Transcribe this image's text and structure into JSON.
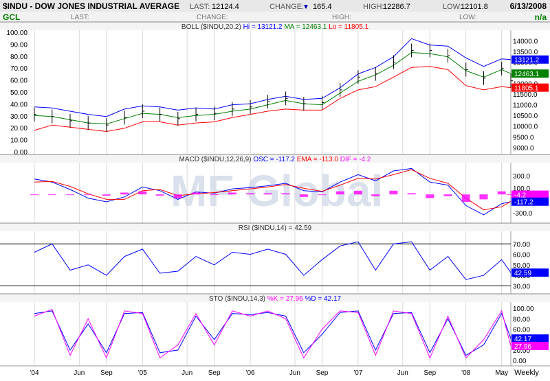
{
  "header": {
    "symbol_title": "$INDU - DOW JONES INDUSTRIAL AVERAGE",
    "last_label": "LAST:",
    "last_value": "12124.4",
    "change_label": "CHANGE:",
    "change_arrow": "▼",
    "change_value": "165.4",
    "high_label": "HIGH:",
    "high_value": "12286.7",
    "low_label": "LOW:",
    "low_value": "12101.8",
    "date": "6/13/2008"
  },
  "header2": {
    "symbol": "GCL",
    "last_label": "LAST:",
    "change_label": "CHANGE:",
    "high_label": "HIGH:",
    "low_label": "LOW:",
    "value": "n/a"
  },
  "watermark": "MF Global",
  "colors": {
    "blue": "#0000ff",
    "green": "#008000",
    "red": "#ff0000",
    "magenta": "#ff00ff",
    "black": "#000000"
  },
  "chart_data": [
    {
      "type": "line",
      "id": "price",
      "legend": {
        "prefix": "BOLL ($INDU,20,2)",
        "hi": "Hi = 13121.2",
        "ma": "MA = 12463.1",
        "lo": "Lo = 11805.1"
      },
      "left_axis": [
        "100.00",
        "90.00",
        "80.00",
        "70.00",
        "60.00",
        "50.00",
        "40.00",
        "30.00",
        "20.00",
        "10.00",
        "0.00"
      ],
      "right_axis": [
        "14000.0",
        "13500.0",
        "13000.0",
        "12500.0",
        "12000.0",
        "11500.0",
        "11000.0",
        "10500.0",
        "10000.0",
        "9500.0",
        "9000.0"
      ],
      "ylim": [
        8800,
        14400
      ],
      "x": [
        "2004-01",
        "2004-03",
        "2004-05",
        "2004-07",
        "2004-09",
        "2004-11",
        "2005-01",
        "2005-03",
        "2005-05",
        "2005-07",
        "2005-09",
        "2005-11",
        "2006-01",
        "2006-03",
        "2006-05",
        "2006-07",
        "2006-09",
        "2006-11",
        "2007-01",
        "2007-03",
        "2007-05",
        "2007-07",
        "2007-09",
        "2007-11",
        "2008-01",
        "2008-03",
        "2008-05",
        "2008-06"
      ],
      "series": [
        {
          "name": "Hi",
          "color": "#0000ff",
          "values": [
            10900,
            10850,
            10700,
            10550,
            10450,
            10800,
            10950,
            10900,
            10750,
            10850,
            10800,
            11000,
            11050,
            11250,
            11400,
            11250,
            11300,
            11800,
            12450,
            12750,
            13250,
            14100,
            13800,
            13750,
            13200,
            12800,
            13150,
            13121.2
          ]
        },
        {
          "name": "MA",
          "color": "#008000",
          "values": [
            10500,
            10450,
            10300,
            10150,
            10100,
            10350,
            10600,
            10550,
            10400,
            10500,
            10550,
            10700,
            10800,
            11000,
            11200,
            11050,
            11000,
            11550,
            12100,
            12400,
            12850,
            13450,
            13400,
            13250,
            12600,
            12300,
            12650,
            12463.1
          ]
        },
        {
          "name": "Lo",
          "color": "#ff0000",
          "values": [
            9800,
            10050,
            9950,
            9850,
            9750,
            9900,
            10200,
            10200,
            10050,
            10150,
            10200,
            10400,
            10550,
            10700,
            10800,
            10750,
            10750,
            11300,
            11700,
            11850,
            12300,
            12750,
            12800,
            12650,
            11900,
            11700,
            11850,
            11805.1
          ]
        },
        {
          "name": "Price",
          "color": "#000000",
          "values": [
            10550,
            10450,
            10250,
            10150,
            10050,
            10400,
            10700,
            10550,
            10350,
            10550,
            10600,
            10800,
            10900,
            11150,
            11300,
            11050,
            11100,
            11700,
            12300,
            12450,
            13000,
            13550,
            13550,
            13300,
            12650,
            12250,
            12700,
            12124.4
          ]
        }
      ],
      "right_tags": [
        {
          "text": "13121.2",
          "value": 13121.2,
          "color": "#0000ff"
        },
        {
          "text": "12463.1",
          "value": 12463.1,
          "color": "#008000"
        },
        {
          "text": "11805.1",
          "value": 11805.1,
          "color": "#ff0000"
        }
      ]
    },
    {
      "type": "line",
      "id": "macd",
      "legend": {
        "prefix": "MACD ($INDU,12,26,9)",
        "osc": "OSC = -117.2",
        "ema": "EMA = -113.0",
        "dif": "DIF = -4.2"
      },
      "right_axis": [
        "300.0",
        "100.0",
        "-300.0"
      ],
      "ylim": [
        -420,
        480
      ],
      "x": [
        "2004-01",
        "2004-03",
        "2004-05",
        "2004-07",
        "2004-09",
        "2004-11",
        "2005-01",
        "2005-03",
        "2005-05",
        "2005-07",
        "2005-09",
        "2005-11",
        "2006-01",
        "2006-03",
        "2006-05",
        "2006-07",
        "2006-09",
        "2006-11",
        "2007-01",
        "2007-03",
        "2007-05",
        "2007-07",
        "2007-09",
        "2007-11",
        "2008-01",
        "2008-03",
        "2008-05",
        "2008-06"
      ],
      "series": [
        {
          "name": "MACD",
          "color": "#0000ff",
          "values": [
            250,
            200,
            80,
            -60,
            -120,
            -40,
            120,
            60,
            -80,
            40,
            20,
            90,
            110,
            140,
            180,
            60,
            40,
            200,
            320,
            220,
            380,
            420,
            200,
            150,
            -180,
            -330,
            -150,
            -117.2
          ]
        },
        {
          "name": "Signal",
          "color": "#ff0000",
          "values": [
            200,
            210,
            130,
            10,
            -80,
            -80,
            60,
            80,
            -20,
            10,
            30,
            60,
            90,
            120,
            160,
            100,
            50,
            150,
            260,
            250,
            320,
            400,
            260,
            180,
            -60,
            -250,
            -200,
            -113.0
          ]
        },
        {
          "name": "Histogram",
          "color": "#ff00ff",
          "values": [
            0,
            0,
            0,
            0,
            -20,
            30,
            50,
            -20,
            -60,
            30,
            -10,
            30,
            20,
            20,
            20,
            -40,
            -10,
            50,
            60,
            -30,
            60,
            20,
            -60,
            -30,
            -120,
            -80,
            50,
            -4.2
          ]
        }
      ],
      "right_tags": [
        {
          "text": "-4.2",
          "value": -4.2,
          "color": "#ff00ff"
        },
        {
          "text": "-117.2",
          "value": -117.2,
          "color": "#0000ff"
        }
      ]
    },
    {
      "type": "line",
      "id": "rsi",
      "legend": {
        "prefix": "RSI ($INDU,14) = 42.59"
      },
      "right_axis": [
        "70.00",
        "60.00",
        "50.00",
        "40.00",
        "30.00"
      ],
      "ylim": [
        25,
        80
      ],
      "x": [
        "2004-01",
        "2004-03",
        "2004-05",
        "2004-07",
        "2004-09",
        "2004-11",
        "2005-01",
        "2005-03",
        "2005-05",
        "2005-07",
        "2005-09",
        "2005-11",
        "2006-01",
        "2006-03",
        "2006-05",
        "2006-07",
        "2006-09",
        "2006-11",
        "2007-01",
        "2007-03",
        "2007-05",
        "2007-07",
        "2007-09",
        "2007-11",
        "2008-01",
        "2008-03",
        "2008-05",
        "2008-06"
      ],
      "series": [
        {
          "name": "RSI",
          "color": "#0000ff",
          "values": [
            62,
            70,
            45,
            50,
            40,
            58,
            65,
            42,
            44,
            58,
            50,
            62,
            60,
            65,
            60,
            40,
            55,
            68,
            72,
            45,
            70,
            72,
            45,
            58,
            36,
            40,
            55,
            42.59
          ]
        }
      ],
      "right_tags": [
        {
          "text": "42.59",
          "value": 42.59,
          "color": "#0000ff"
        }
      ]
    },
    {
      "type": "line",
      "id": "sto",
      "legend": {
        "prefix": "STO ($INDU,14,3)",
        "k": "%K = 27.96",
        "d": "%D = 42.17"
      },
      "right_axis": [
        "100.00",
        "80.00",
        "60.00",
        "40.00",
        "20.00",
        "0.00"
      ],
      "ylim": [
        -5,
        108
      ],
      "x": [
        "2004-01",
        "2004-03",
        "2004-05",
        "2004-07",
        "2004-09",
        "2004-11",
        "2005-01",
        "2005-03",
        "2005-05",
        "2005-07",
        "2005-09",
        "2005-11",
        "2006-01",
        "2006-03",
        "2006-05",
        "2006-07",
        "2006-09",
        "2006-11",
        "2007-01",
        "2007-03",
        "2007-05",
        "2007-07",
        "2007-09",
        "2007-11",
        "2008-01",
        "2008-03",
        "2008-05",
        "2008-06"
      ],
      "series": [
        {
          "name": "%D",
          "color": "#0000ff",
          "values": [
            90,
            95,
            20,
            70,
            15,
            90,
            92,
            15,
            20,
            85,
            40,
            90,
            88,
            92,
            85,
            15,
            50,
            92,
            95,
            20,
            90,
            92,
            15,
            80,
            10,
            30,
            90,
            42.17
          ]
        },
        {
          "name": "%K",
          "color": "#ff00ff",
          "values": [
            85,
            98,
            10,
            80,
            5,
            95,
            90,
            5,
            30,
            90,
            30,
            95,
            85,
            95,
            80,
            5,
            60,
            95,
            92,
            10,
            95,
            90,
            5,
            85,
            5,
            40,
            95,
            27.96
          ]
        }
      ],
      "right_tags": [
        {
          "text": "42.17",
          "value": 42.17,
          "color": "#0000ff"
        },
        {
          "text": "27.96",
          "value": 27.96,
          "color": "#ff00ff"
        }
      ]
    }
  ],
  "x_axis": {
    "labels": [
      "'04",
      "Jun",
      "Sep",
      "'05",
      "Jun",
      "Sep",
      "'06",
      "Jun",
      "Sep",
      "'07",
      "Jun",
      "Sep",
      "'08",
      "May"
    ],
    "label_dates": [
      "2004-01",
      "2004-06",
      "2004-09",
      "2005-01",
      "2005-06",
      "2005-09",
      "2006-01",
      "2006-06",
      "2006-09",
      "2007-01",
      "2007-06",
      "2007-09",
      "2008-01",
      "2008-05"
    ],
    "period": "Weekly"
  }
}
